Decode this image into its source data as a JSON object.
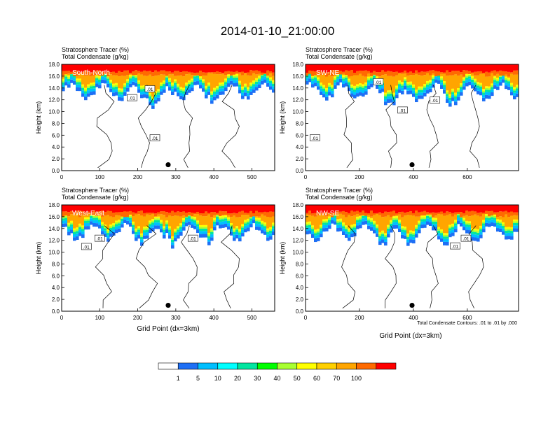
{
  "figure": {
    "title": "2014-01-10_21:00:00",
    "xlabel": "Grid Point (dx=3km)",
    "contour_note": "Total Condensate Contours: .01 to .01 by .000"
  },
  "colorbar": {
    "colors": [
      "#ffffff",
      "#1e6ff5",
      "#00bfff",
      "#00ffff",
      "#00e6a0",
      "#00ff00",
      "#a8ff30",
      "#ffff00",
      "#ffd000",
      "#ffa500",
      "#ff6a00",
      "#ff0000"
    ],
    "labels": [
      "1",
      "5",
      "10",
      "20",
      "30",
      "40",
      "50",
      "60",
      "70",
      "100"
    ]
  },
  "chart_data": [
    {
      "type": "heatmap",
      "panel": "South-North",
      "title_line1": "Stratosphere Tracer   (%)",
      "title_line2": "Total Condensate   (g/kg)",
      "ylabel": "Height (km)",
      "xlim": [
        0,
        560
      ],
      "ylim": [
        0,
        18
      ],
      "x_ticks": [
        0,
        100,
        200,
        300,
        400,
        500
      ],
      "y_ticks": [
        "0.0",
        "2.0",
        "4.0",
        "6.0",
        "8.0",
        "10.0",
        "12.0",
        "14.0",
        "16.0",
        "18.0"
      ],
      "marker": {
        "x": 280,
        "y": 1.0
      },
      "contour_labels": [
        {
          "text": ".01",
          "x": 185,
          "y": 12.3
        },
        {
          "text": ".01",
          "x": 232,
          "y": 13.8
        },
        {
          "text": ".01",
          "x": 245,
          "y": 5.5
        }
      ]
    },
    {
      "type": "heatmap",
      "panel": "SW-NE",
      "title_line1": "Stratosphere Tracer   (%)",
      "title_line2": "Total Condensate   (g/kg)",
      "ylabel": "Height (km)",
      "xlim": [
        0,
        790
      ],
      "ylim": [
        0,
        18
      ],
      "x_ticks": [
        0,
        200,
        400,
        600
      ],
      "y_ticks": [
        "0.0",
        "2.0",
        "4.0",
        "6.0",
        "8.0",
        "10.0",
        "12.0",
        "14.0",
        "16.0",
        "18.0"
      ],
      "marker": {
        "x": 395,
        "y": 1.0
      },
      "contour_labels": [
        {
          "text": ".01",
          "x": 270,
          "y": 15.0
        },
        {
          "text": ".01",
          "x": 360,
          "y": 10.2
        },
        {
          "text": ".01",
          "x": 480,
          "y": 11.9
        },
        {
          "text": ".01",
          "x": 35,
          "y": 5.5
        }
      ]
    },
    {
      "type": "heatmap",
      "panel": "West-East",
      "title_line1": "Stratosphere Tracer   (%)",
      "title_line2": "Total Condensate   (g/kg)",
      "ylabel": "Height (km)",
      "xlim": [
        0,
        560
      ],
      "ylim": [
        0,
        18
      ],
      "x_ticks": [
        0,
        100,
        200,
        300,
        400,
        500
      ],
      "y_ticks": [
        "0.0",
        "2.0",
        "4.0",
        "6.0",
        "8.0",
        "10.0",
        "12.0",
        "14.0",
        "16.0",
        "18.0"
      ],
      "marker": {
        "x": 280,
        "y": 1.0
      },
      "contour_labels": [
        {
          "text": ".01",
          "x": 65,
          "y": 10.9
        },
        {
          "text": ".01",
          "x": 100,
          "y": 12.3
        },
        {
          "text": ".01",
          "x": 345,
          "y": 12.3
        }
      ]
    },
    {
      "type": "heatmap",
      "panel": "NW-SE",
      "title_line1": "Stratosphere Tracer   (%)",
      "title_line2": "Total Condensate   (g/kg)",
      "ylabel": "Height (km)",
      "xlim": [
        0,
        790
      ],
      "ylim": [
        0,
        18
      ],
      "x_ticks": [
        0,
        200,
        400,
        600
      ],
      "y_ticks": [
        "0.0",
        "2.0",
        "4.0",
        "6.0",
        "8.0",
        "10.0",
        "12.0",
        "14.0",
        "16.0",
        "18.0"
      ],
      "marker": {
        "x": 395,
        "y": 1.0
      },
      "contour_labels": [
        {
          "text": ".01",
          "x": 555,
          "y": 11.0
        },
        {
          "text": ".01",
          "x": 595,
          "y": 12.3
        }
      ]
    }
  ]
}
